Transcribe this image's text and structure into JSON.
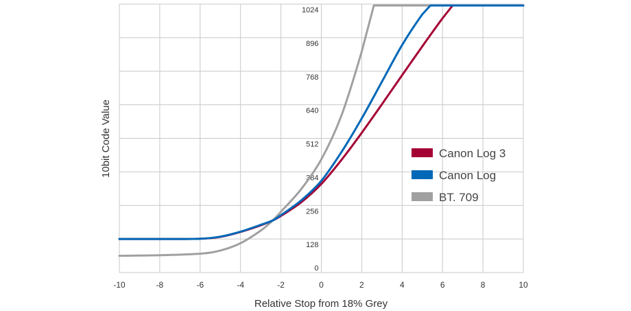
{
  "chart_data": {
    "type": "line",
    "title": "",
    "xlabel": "Relative Stop from 18% Grey",
    "ylabel": "10bit Code Value",
    "xlim": [
      -10,
      10
    ],
    "ylim": [
      0,
      1024
    ],
    "xticks": [
      -10,
      -8,
      -6,
      -4,
      -2,
      0,
      2,
      4,
      6,
      8,
      10
    ],
    "xtick_labels": [
      "-10",
      "-8",
      "-6",
      "-4",
      "-2",
      "0",
      "2",
      "4",
      "6",
      "8",
      "10"
    ],
    "yticks": [
      0,
      128,
      256,
      384,
      512,
      640,
      768,
      896,
      1024
    ],
    "ytick_labels": [
      "0",
      "128",
      "256",
      "384",
      "512",
      "640",
      "768",
      "896",
      "1024"
    ],
    "grid": true,
    "legend_position": "right-middle",
    "series": [
      {
        "name": "Canon Log 3",
        "color": "#a50034",
        "x": [
          -10,
          -8,
          -6,
          -5,
          -4,
          -3,
          -2.4,
          -2,
          -1,
          0,
          1,
          2,
          3,
          4,
          5,
          6,
          6.5,
          7,
          8,
          10
        ],
        "y": [
          128,
          128,
          129,
          136,
          155,
          180,
          199,
          216,
          268,
          338,
          430,
          533,
          642,
          753,
          863,
          970,
          1020,
          1020,
          1020,
          1020
        ]
      },
      {
        "name": "Canon Log",
        "color": "#0068b7",
        "x": [
          -10,
          -8,
          -6,
          -5,
          -4,
          -3,
          -2.4,
          -2,
          -1,
          0,
          1,
          2,
          3,
          4,
          5,
          5.4,
          6,
          8,
          10
        ],
        "y": [
          128,
          128,
          129,
          137,
          156,
          182,
          199,
          219,
          275,
          350,
          460,
          588,
          728,
          868,
          985,
          1020,
          1020,
          1020,
          1020
        ]
      },
      {
        "name": "BT. 709",
        "color": "#a0a0a0",
        "x": [
          -10,
          -8,
          -6,
          -5,
          -4,
          -3,
          -2.4,
          -2,
          -1,
          0,
          1,
          2,
          2.6,
          3,
          4,
          6,
          8,
          10
        ],
        "y": [
          64,
          66,
          72,
          84,
          112,
          160,
          199,
          232,
          318,
          432,
          600,
          843,
          1023,
          1023,
          1023,
          1023,
          1023,
          1023
        ]
      }
    ]
  }
}
